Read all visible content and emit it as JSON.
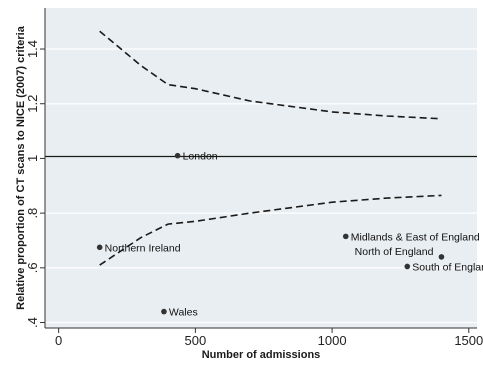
{
  "chart_data": {
    "type": "scatter",
    "title": "",
    "xlabel": "Number of admissions",
    "ylabel": "Relative proportion of CT scans to NICE (2007) criteria",
    "xlim": [
      -50,
      1530
    ],
    "ylim": [
      0.38,
      1.55
    ],
    "xticks": [
      {
        "value": 0,
        "label": "0"
      },
      {
        "value": 500,
        "label": "500"
      },
      {
        "value": 1000,
        "label": "1000"
      },
      {
        "value": 1500,
        "label": "1500"
      }
    ],
    "yticks": [
      {
        "value": 0.4,
        "label": ".4"
      },
      {
        "value": 0.6,
        "label": ".6"
      },
      {
        "value": 0.8,
        "label": ".8"
      },
      {
        "value": 1.0,
        "label": "1"
      },
      {
        "value": 1.2,
        "label": "1.2"
      },
      {
        "value": 1.4,
        "label": "1.4"
      }
    ],
    "grid": "horizontal",
    "background": "#e9eef2",
    "reference_line": {
      "y": 1.0
    },
    "points": [
      {
        "label": "London",
        "x": 435,
        "y": 1.01
      },
      {
        "label": "Northern Ireland",
        "x": 150,
        "y": 0.675
      },
      {
        "label": "Wales",
        "x": 385,
        "y": 0.44
      },
      {
        "label": "Midlands & East of England",
        "x": 1050,
        "y": 0.715
      },
      {
        "label": "North of England",
        "x": 1400,
        "y": 0.64
      },
      {
        "label": "South of England",
        "x": 1275,
        "y": 0.605
      }
    ],
    "upper_limit": [
      {
        "x": 150,
        "y": 1.465
      },
      {
        "x": 300,
        "y": 1.34
      },
      {
        "x": 400,
        "y": 1.27
      },
      {
        "x": 500,
        "y": 1.255
      },
      {
        "x": 700,
        "y": 1.21
      },
      {
        "x": 1000,
        "y": 1.17
      },
      {
        "x": 1200,
        "y": 1.155
      },
      {
        "x": 1400,
        "y": 1.145
      }
    ],
    "lower_limit": [
      {
        "x": 150,
        "y": 0.61
      },
      {
        "x": 300,
        "y": 0.71
      },
      {
        "x": 400,
        "y": 0.76
      },
      {
        "x": 500,
        "y": 0.77
      },
      {
        "x": 700,
        "y": 0.8
      },
      {
        "x": 1000,
        "y": 0.84
      },
      {
        "x": 1200,
        "y": 0.855
      },
      {
        "x": 1400,
        "y": 0.865
      }
    ]
  }
}
